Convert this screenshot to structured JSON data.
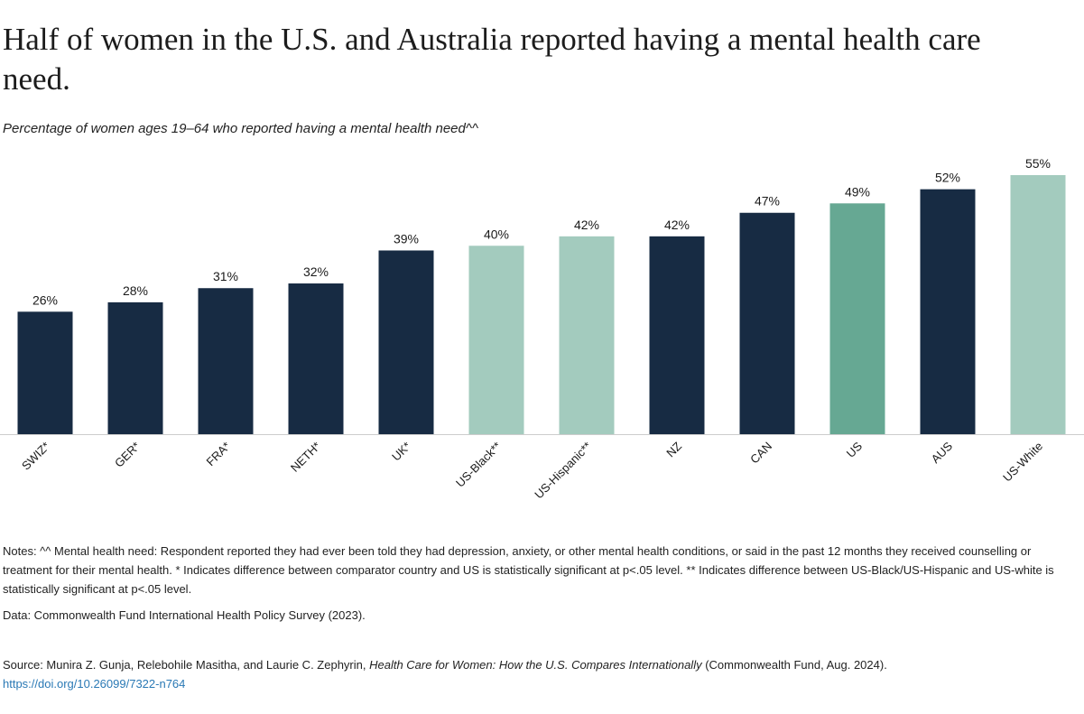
{
  "chart_data": {
    "type": "bar",
    "title": "Half of women in the U.S. and Australia reported having a mental health care need.",
    "subtitle": "Percentage of women ages 19–64 who reported having a mental health need^^",
    "categories": [
      "SWIZ*",
      "GER*",
      "FRA*",
      "NETH*",
      "UK*",
      "US-Black**",
      "US-Hispanic**",
      "NZ",
      "CAN",
      "US",
      "AUS",
      "US-White"
    ],
    "values": [
      26,
      28,
      31,
      32,
      39,
      40,
      42,
      42,
      47,
      49,
      52,
      55
    ],
    "value_labels": [
      "26%",
      "28%",
      "31%",
      "32%",
      "39%",
      "40%",
      "42%",
      "42%",
      "47%",
      "49%",
      "52%",
      "55%"
    ],
    "bar_colors": [
      "#172b43",
      "#172b43",
      "#172b43",
      "#172b43",
      "#172b43",
      "#a3cbbe",
      "#a3cbbe",
      "#172b43",
      "#172b43",
      "#66a893",
      "#172b43",
      "#a3cbbe"
    ],
    "ylim": [
      0,
      55
    ],
    "grid": false,
    "legend": "none"
  },
  "notes": "Notes: ^^ Mental health need: Respondent reported they had ever been told they had depression, anxiety, or other mental health conditions, or said in the past 12 months they received counselling or treatment for their mental health. * Indicates difference between comparator country and US is statistically significant at p<.05 level. ** Indicates difference between US-Black/US-Hispanic and US-white is statistically significant at p<.05 level.",
  "data_source": "Data: Commonwealth Fund International Health Policy Survey (2023).",
  "source": {
    "prefix": "Source: Munira Z. Gunja, Relebohile Masitha, and Laurie C. Zephyrin, ",
    "title": "Health Care for Women: How the U.S. Compares Internationally",
    "suffix": " (Commonwealth Fund, Aug. 2024).",
    "link": "https://doi.org/10.26099/7322-n764"
  }
}
